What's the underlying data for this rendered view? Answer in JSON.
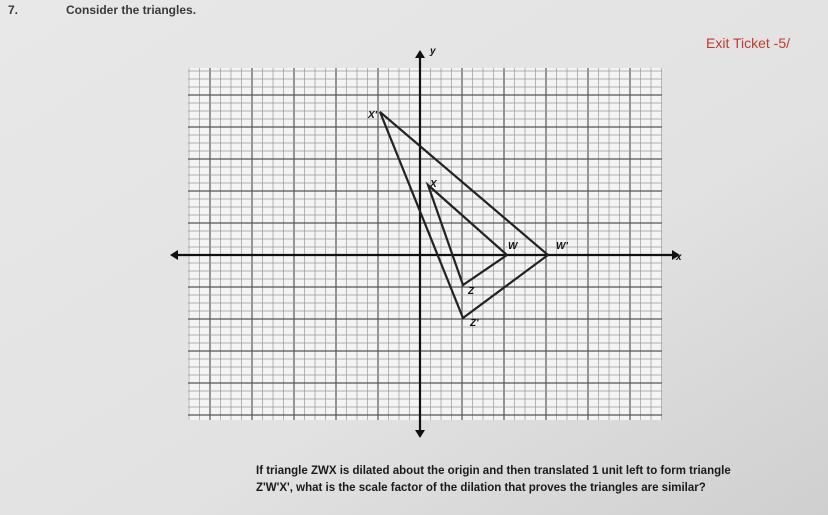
{
  "header": {
    "number": "7.",
    "title": "Consider the triangles.",
    "tag": "Exit Ticket -5/"
  },
  "graph": {
    "x_axis": "x",
    "y_axis": "y",
    "labels": [
      "X'",
      "X",
      "W",
      "W'",
      "Z",
      "Z'"
    ]
  },
  "question": {
    "lines": [
      "If triangle ZWX is dilated about the origin and then translated 1 unit left to form triangle",
      "Z'W'X', what is the scale factor of the dilation that proves the triangles are similar?"
    ]
  }
}
